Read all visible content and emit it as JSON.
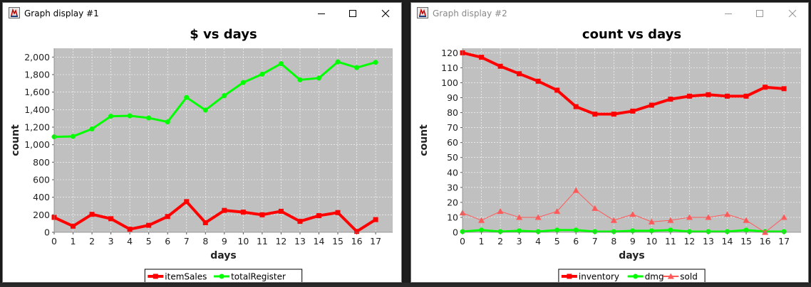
{
  "windows": [
    {
      "title": "Graph display #1",
      "active": true,
      "controls": [
        "minimize-icon",
        "maximize-icon",
        "close-icon"
      ],
      "chart_data": {
        "type": "line",
        "title": "$ vs days",
        "xlabel": "days",
        "ylabel": "count",
        "x": [
          0,
          1,
          2,
          3,
          4,
          5,
          6,
          7,
          8,
          9,
          10,
          11,
          12,
          13,
          14,
          15,
          16,
          17
        ],
        "xlim": [
          0,
          17.9
        ],
        "ylim": [
          0,
          2100
        ],
        "yticks": [
          0,
          200,
          400,
          600,
          800,
          1000,
          1200,
          1400,
          1600,
          1800,
          2000
        ],
        "ytick_labels": [
          "0",
          "200",
          "400",
          "600",
          "800",
          "1,000",
          "1,200",
          "1,400",
          "1,600",
          "1,800",
          "2,000"
        ],
        "grid": true,
        "legend": "bottom-center",
        "series": [
          {
            "name": "itemSales",
            "color": "#ff0000",
            "marker": "square",
            "line_width": 4,
            "values": [
              170,
              70,
              205,
              155,
              35,
              80,
              180,
              350,
              110,
              250,
              230,
              200,
              240,
              125,
              190,
              225,
              10,
              145
            ]
          },
          {
            "name": "totalRegister",
            "color": "#00ff00",
            "marker": "circle",
            "line_width": 3,
            "values": [
              1090,
              1095,
              1180,
              1325,
              1330,
              1305,
              1260,
              1540,
              1395,
              1560,
              1710,
              1805,
              1925,
              1740,
              1760,
              1945,
              1880,
              1940
            ]
          }
        ]
      }
    },
    {
      "title": "Graph display #2",
      "active": false,
      "controls": [
        "minimize-icon",
        "maximize-icon",
        "close-icon"
      ],
      "chart_data": {
        "type": "line",
        "title": "count vs days",
        "xlabel": "days",
        "ylabel": "count",
        "x": [
          0,
          1,
          2,
          3,
          4,
          5,
          6,
          7,
          8,
          9,
          10,
          11,
          12,
          13,
          14,
          15,
          16,
          17
        ],
        "xlim": [
          0,
          17.9
        ],
        "ylim": [
          0,
          123
        ],
        "yticks": [
          0,
          10,
          20,
          30,
          40,
          50,
          60,
          70,
          80,
          90,
          100,
          110,
          120
        ],
        "ytick_labels": [
          "0",
          "10",
          "20",
          "30",
          "40",
          "50",
          "60",
          "70",
          "80",
          "90",
          "100",
          "110",
          "120"
        ],
        "grid": true,
        "legend": "bottom-center",
        "series": [
          {
            "name": "inventory",
            "color": "#ff0000",
            "marker": "square",
            "line_width": 4,
            "values": [
              120,
              117,
              111,
              106,
              101,
              95,
              84,
              79,
              79,
              81,
              85,
              89,
              91,
              92,
              91,
              91,
              97,
              96
            ]
          },
          {
            "name": "dmg",
            "color": "#00ff00",
            "marker": "circle",
            "line_width": 3,
            "values": [
              0.5,
              1.5,
              0.5,
              1,
              0.5,
              1.5,
              1.5,
              0.5,
              0.5,
              1,
              1,
              1.5,
              0.5,
              0.5,
              0.5,
              1.5,
              0.5,
              0.5
            ]
          },
          {
            "name": "sold",
            "color": "#ff5a5a",
            "marker": "triangle",
            "line_width": 1,
            "values": [
              13,
              8,
              14,
              10,
              10,
              14,
              28,
              16,
              8,
              12,
              7,
              8,
              10,
              10,
              12,
              8,
              0,
              10
            ]
          }
        ]
      }
    }
  ]
}
